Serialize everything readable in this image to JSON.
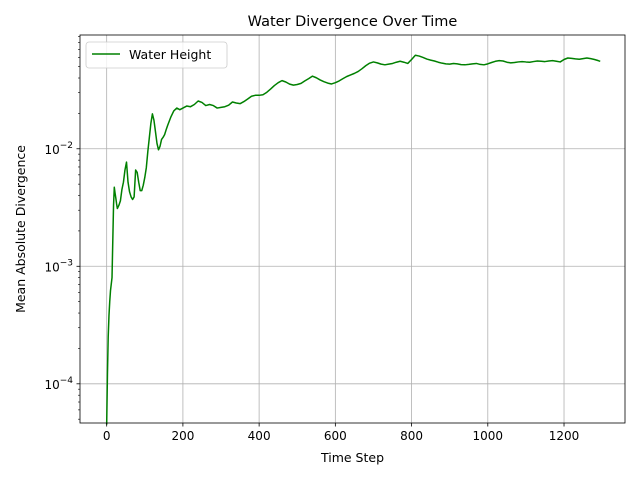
{
  "chart_data": {
    "type": "line",
    "title": "Water Divergence Over Time",
    "xlabel": "Time Step",
    "ylabel": "Mean Absolute Divergence",
    "xlim": [
      -70,
      1360
    ],
    "ylim": [
      4.64e-05,
      0.0929
    ],
    "yscale": "log",
    "grid": true,
    "legend_position": "top-left",
    "x_ticks": [
      0,
      200,
      400,
      600,
      800,
      1000,
      1200
    ],
    "x_tick_labels": [
      "0",
      "200",
      "400",
      "600",
      "800",
      "1000",
      "1200"
    ],
    "y_ticks": [
      {
        "value": 0.0001,
        "base": "10",
        "exp": "−4"
      },
      {
        "value": 0.001,
        "base": "10",
        "exp": "−3"
      },
      {
        "value": 0.01,
        "base": "10",
        "exp": "−2"
      }
    ],
    "series": [
      {
        "name": "Water Height",
        "color": "#008000",
        "x": [
          0,
          2,
          4,
          6,
          8,
          10,
          14,
          18,
          20,
          22,
          24,
          26,
          28,
          32,
          36,
          40,
          44,
          48,
          52,
          56,
          60,
          64,
          68,
          72,
          76,
          80,
          84,
          88,
          92,
          96,
          100,
          104,
          108,
          112,
          116,
          120,
          124,
          128,
          132,
          136,
          140,
          144,
          148,
          152,
          156,
          160,
          168,
          176,
          184,
          192,
          200,
          210,
          220,
          230,
          240,
          250,
          260,
          270,
          280,
          290,
          300,
          310,
          320,
          330,
          340,
          350,
          360,
          370,
          380,
          390,
          400,
          410,
          420,
          430,
          440,
          450,
          460,
          470,
          480,
          490,
          500,
          510,
          520,
          530,
          540,
          550,
          560,
          570,
          580,
          590,
          600,
          610,
          620,
          630,
          640,
          650,
          660,
          670,
          680,
          690,
          700,
          710,
          720,
          730,
          740,
          750,
          760,
          770,
          780,
          790,
          800,
          810,
          820,
          830,
          840,
          850,
          860,
          870,
          880,
          890,
          900,
          910,
          920,
          930,
          940,
          950,
          960,
          970,
          980,
          990,
          1000,
          1010,
          1020,
          1030,
          1040,
          1050,
          1060,
          1070,
          1080,
          1090,
          1100,
          1110,
          1120,
          1130,
          1140,
          1150,
          1160,
          1170,
          1180,
          1190,
          1200,
          1210,
          1220,
          1230,
          1240,
          1250,
          1260,
          1270,
          1280,
          1290,
          1295
        ],
        "y": [
          4.5e-05,
          0.00012,
          0.00025,
          0.00038,
          0.0005,
          0.00062,
          0.0008,
          0.0033,
          0.0047,
          0.0042,
          0.0038,
          0.0034,
          0.0031,
          0.0033,
          0.0036,
          0.0045,
          0.0052,
          0.0066,
          0.0077,
          0.0052,
          0.0043,
          0.0039,
          0.0037,
          0.0039,
          0.0066,
          0.0063,
          0.0052,
          0.0044,
          0.0044,
          0.0049,
          0.0057,
          0.0069,
          0.0095,
          0.0125,
          0.0165,
          0.0198,
          0.0175,
          0.014,
          0.0111,
          0.0098,
          0.0105,
          0.012,
          0.0125,
          0.0132,
          0.0145,
          0.0158,
          0.0185,
          0.021,
          0.0222,
          0.0215,
          0.0222,
          0.0231,
          0.0228,
          0.0238,
          0.0255,
          0.0248,
          0.0233,
          0.0238,
          0.0233,
          0.0222,
          0.0225,
          0.0228,
          0.0235,
          0.025,
          0.0245,
          0.0242,
          0.0252,
          0.0265,
          0.028,
          0.0285,
          0.0285,
          0.0288,
          0.0302,
          0.0322,
          0.0345,
          0.0365,
          0.038,
          0.037,
          0.0355,
          0.0348,
          0.0352,
          0.036,
          0.0378,
          0.0395,
          0.0415,
          0.0402,
          0.0385,
          0.0372,
          0.0362,
          0.0356,
          0.0365,
          0.0378,
          0.0395,
          0.0412,
          0.0425,
          0.0438,
          0.0455,
          0.048,
          0.051,
          0.0535,
          0.0548,
          0.0538,
          0.0525,
          0.0518,
          0.0525,
          0.0532,
          0.0545,
          0.0555,
          0.0545,
          0.0532,
          0.0575,
          0.0625,
          0.0615,
          0.0598,
          0.058,
          0.0568,
          0.0558,
          0.0545,
          0.0535,
          0.0528,
          0.0525,
          0.0532,
          0.0528,
          0.052,
          0.0518,
          0.0522,
          0.0528,
          0.0532,
          0.0522,
          0.0518,
          0.0528,
          0.0542,
          0.0555,
          0.0562,
          0.0558,
          0.0545,
          0.0538,
          0.0542,
          0.0548,
          0.0552,
          0.0548,
          0.0545,
          0.0552,
          0.0558,
          0.0555,
          0.0552,
          0.0558,
          0.0562,
          0.0555,
          0.0548,
          0.0575,
          0.0592,
          0.0588,
          0.0582,
          0.0578,
          0.0585,
          0.0592,
          0.0585,
          0.0575,
          0.0562,
          0.0555
        ]
      }
    ]
  }
}
